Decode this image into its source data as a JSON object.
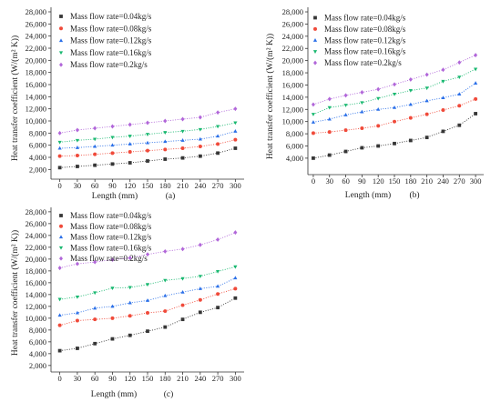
{
  "chart_data": [
    {
      "type": "line",
      "panel_label": "(a)",
      "xlabel": "Length (mm)",
      "ylabel": "Heat transfer coefficient (W/(m² K))",
      "x": [
        0,
        30,
        60,
        90,
        120,
        150,
        180,
        210,
        240,
        270,
        300
      ],
      "xlim": [
        -15,
        315
      ],
      "ylim": [
        400,
        28750
      ],
      "xticks": [
        0,
        30,
        60,
        90,
        120,
        150,
        180,
        210,
        240,
        270,
        300
      ],
      "xtick_labels": [
        "0",
        "30",
        "60",
        "90",
        "120",
        "150",
        "180",
        "210",
        "240",
        "270",
        "300"
      ],
      "yticks": [
        2000,
        4000,
        6000,
        8000,
        10000,
        12000,
        14000,
        16000,
        18000,
        20000,
        22000,
        24000,
        26000,
        28000
      ],
      "ytick_labels": [
        "2,000",
        "4,000",
        "6,000",
        "8,000",
        "10,000",
        "12,000",
        "14,000",
        "16,000",
        "18,000",
        "20,000",
        "22,000",
        "24,000",
        "26,000",
        "28,000"
      ],
      "grid": false,
      "legend": "top-left",
      "series": [
        {
          "name": "Mass flow rate=0.04kg/s",
          "marker": "square",
          "color": "#363636",
          "values": [
            2300,
            2500,
            2700,
            2900,
            3100,
            3400,
            3700,
            3900,
            4200,
            4700,
            5500
          ]
        },
        {
          "name": "Mass flow rate=0.08kg/s",
          "marker": "circle",
          "color": "#f04a3a",
          "values": [
            4200,
            4300,
            4500,
            4700,
            4900,
            5100,
            5300,
            5500,
            5800,
            6200,
            6900
          ]
        },
        {
          "name": "Mass flow rate=0.12kg/s",
          "marker": "triangle-up",
          "color": "#2a6fe8",
          "values": [
            5500,
            5600,
            5800,
            6000,
            6200,
            6400,
            6600,
            6800,
            7000,
            7500,
            8300
          ]
        },
        {
          "name": "Mass flow rate=0.16kg/s",
          "marker": "triangle-down",
          "color": "#19b870",
          "values": [
            6500,
            6800,
            7000,
            7300,
            7500,
            7800,
            8100,
            8300,
            8600,
            9100,
            9700
          ]
        },
        {
          "name": "Mass flow rate=0.2kg/s",
          "marker": "diamond",
          "color": "#b166d9",
          "values": [
            8000,
            8500,
            8800,
            9100,
            9400,
            9700,
            10000,
            10300,
            10600,
            11400,
            12000
          ]
        }
      ]
    },
    {
      "type": "line",
      "panel_label": "(b)",
      "xlabel": "Length (mm)",
      "ylabel": "Heat transfer coefficient (W/(m² K))",
      "x": [
        0,
        30,
        60,
        90,
        120,
        150,
        180,
        210,
        240,
        270,
        300
      ],
      "xlim": [
        -10,
        315
      ],
      "ylim": [
        1300,
        28750
      ],
      "xticks": [
        0,
        30,
        60,
        90,
        120,
        150,
        180,
        210,
        240,
        270,
        300
      ],
      "xtick_labels": [
        "0",
        "30",
        "60",
        "90",
        "120",
        "150",
        "180",
        "210",
        "240",
        "270",
        "300"
      ],
      "yticks": [
        4000,
        6000,
        8000,
        10000,
        12000,
        14000,
        16000,
        18000,
        20000,
        22000,
        24000,
        26000,
        28000
      ],
      "ytick_labels": [
        "4,000",
        "6,000",
        "8,000",
        "10,000",
        "12,000",
        "14,000",
        "16,000",
        "18,000",
        "20,000",
        "22,000",
        "24,000",
        "26,000",
        "28,000"
      ],
      "grid": false,
      "legend": "top-left",
      "series": [
        {
          "name": "Mass flow rate=0.04kg/s",
          "marker": "square",
          "color": "#363636",
          "values": [
            4000,
            4500,
            5100,
            5700,
            6000,
            6400,
            6900,
            7400,
            8400,
            9400,
            11300
          ]
        },
        {
          "name": "Mass flow rate=0.08kg/s",
          "marker": "circle",
          "color": "#f04a3a",
          "values": [
            8100,
            8300,
            8600,
            8900,
            9300,
            10000,
            10600,
            11200,
            11900,
            12600,
            13700
          ]
        },
        {
          "name": "Mass flow rate=0.12kg/s",
          "marker": "triangle-up",
          "color": "#2a6fe8",
          "values": [
            9900,
            10400,
            11100,
            11600,
            12000,
            12300,
            12800,
            13400,
            13900,
            14500,
            16300
          ]
        },
        {
          "name": "Mass flow rate=0.16kg/s",
          "marker": "triangle-down",
          "color": "#19b870",
          "values": [
            11200,
            12300,
            12700,
            13100,
            13800,
            14500,
            15100,
            15500,
            16600,
            17300,
            18600
          ]
        },
        {
          "name": "Mass flow rate=0.2kg/s",
          "marker": "diamond",
          "color": "#b166d9",
          "values": [
            12800,
            13700,
            14300,
            14800,
            15300,
            16100,
            16900,
            17700,
            18500,
            19700,
            20900
          ]
        }
      ]
    },
    {
      "type": "line",
      "panel_label": "(c)",
      "xlabel": "Length (mm)",
      "ylabel": "Heat transfer coefficient (W/(m² K))",
      "x": [
        0,
        30,
        60,
        90,
        120,
        150,
        180,
        210,
        240,
        270,
        300
      ],
      "xlim": [
        -15,
        315
      ],
      "ylim": [
        900,
        28750
      ],
      "xticks": [
        0,
        30,
        60,
        90,
        120,
        150,
        180,
        210,
        240,
        270,
        300
      ],
      "xtick_labels": [
        "0",
        "30",
        "60",
        "90",
        "120",
        "150",
        "180",
        "210",
        "240",
        "270",
        "300"
      ],
      "yticks": [
        2000,
        4000,
        6000,
        8000,
        10000,
        12000,
        14000,
        16000,
        18000,
        20000,
        22000,
        24000,
        26000,
        28000
      ],
      "ytick_labels": [
        "2,000",
        "4,000",
        "6,000",
        "8,000",
        "10,000",
        "12,000",
        "14,000",
        "16,000",
        "18,000",
        "20,000",
        "22,000",
        "24,000",
        "26,000",
        "28,000"
      ],
      "grid": false,
      "legend": "top-left",
      "series": [
        {
          "name": "Mass flow rate=0.04kg/s",
          "marker": "square",
          "color": "#363636",
          "values": [
            4500,
            4900,
            5700,
            6500,
            7100,
            7800,
            8500,
            9800,
            11000,
            11800,
            13400
          ]
        },
        {
          "name": "Mass flow rate=0.08kg/s",
          "marker": "circle",
          "color": "#f04a3a",
          "values": [
            8800,
            9600,
            9800,
            10000,
            10400,
            10900,
            11200,
            12200,
            13100,
            14100,
            15000
          ]
        },
        {
          "name": "Mass flow rate=0.12kg/s",
          "marker": "triangle-up",
          "color": "#2a6fe8",
          "values": [
            10500,
            10900,
            11700,
            12000,
            12600,
            13000,
            13800,
            14400,
            15000,
            15400,
            16800
          ]
        },
        {
          "name": "Mass flow rate=0.16kg/s",
          "marker": "triangle-down",
          "color": "#19b870",
          "values": [
            13200,
            13600,
            14300,
            15100,
            15200,
            15700,
            16400,
            16700,
            17100,
            17900,
            18700
          ]
        },
        {
          "name": "Mass flow rate=0.2kg/s",
          "marker": "diamond",
          "color": "#b166d9",
          "values": [
            18500,
            19200,
            19500,
            19900,
            20200,
            20800,
            21300,
            21700,
            22400,
            23300,
            24500
          ]
        }
      ]
    }
  ]
}
